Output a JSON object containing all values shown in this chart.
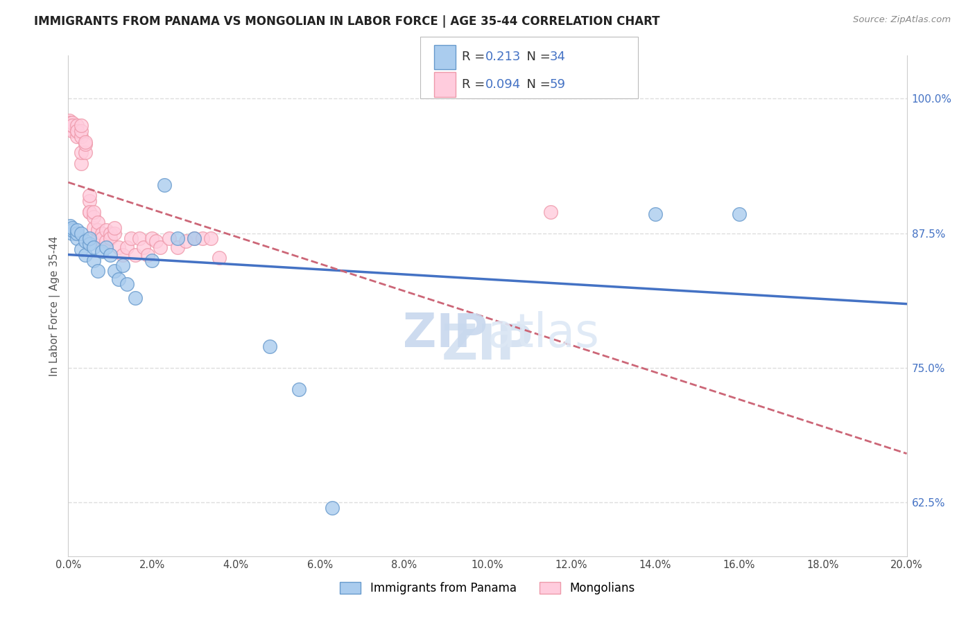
{
  "title": "IMMIGRANTS FROM PANAMA VS MONGOLIAN IN LABOR FORCE | AGE 35-44 CORRELATION CHART",
  "source": "Source: ZipAtlas.com",
  "ylabel": "In Labor Force | Age 35-44",
  "yticks": [
    0.625,
    0.75,
    0.875,
    1.0
  ],
  "ytick_labels": [
    "62.5%",
    "75.0%",
    "87.5%",
    "100.0%"
  ],
  "xlim": [
    0.0,
    0.2
  ],
  "ylim": [
    0.575,
    1.04
  ],
  "panama_color_edge": "#6699cc",
  "panama_color_fill": "#aaccee",
  "mongolian_color_edge": "#ee99aa",
  "mongolian_color_fill": "#ffccdd",
  "regression_blue": "#4472c4",
  "regression_pink": "#cc6677",
  "background_color": "#ffffff",
  "grid_color": "#dddddd",
  "panama_x": [
    0.0005,
    0.0005,
    0.001,
    0.001,
    0.001,
    0.002,
    0.002,
    0.002,
    0.003,
    0.003,
    0.004,
    0.004,
    0.005,
    0.005,
    0.006,
    0.006,
    0.007,
    0.008,
    0.009,
    0.01,
    0.011,
    0.012,
    0.013,
    0.014,
    0.016,
    0.02,
    0.023,
    0.026,
    0.03,
    0.048,
    0.055,
    0.063,
    0.14,
    0.16
  ],
  "panama_y": [
    0.878,
    0.882,
    0.875,
    0.878,
    0.88,
    0.87,
    0.875,
    0.878,
    0.86,
    0.875,
    0.855,
    0.868,
    0.865,
    0.87,
    0.85,
    0.862,
    0.84,
    0.858,
    0.862,
    0.855,
    0.84,
    0.832,
    0.845,
    0.828,
    0.815,
    0.85,
    0.92,
    0.87,
    0.87,
    0.77,
    0.73,
    0.62,
    0.893,
    0.893
  ],
  "mongolian_x": [
    0.0003,
    0.0003,
    0.0005,
    0.0005,
    0.0005,
    0.001,
    0.001,
    0.001,
    0.001,
    0.002,
    0.002,
    0.002,
    0.002,
    0.003,
    0.003,
    0.003,
    0.003,
    0.003,
    0.004,
    0.004,
    0.004,
    0.005,
    0.005,
    0.005,
    0.005,
    0.006,
    0.006,
    0.006,
    0.007,
    0.007,
    0.007,
    0.008,
    0.008,
    0.008,
    0.009,
    0.009,
    0.01,
    0.01,
    0.011,
    0.011,
    0.012,
    0.013,
    0.014,
    0.015,
    0.016,
    0.017,
    0.018,
    0.019,
    0.02,
    0.021,
    0.022,
    0.024,
    0.026,
    0.028,
    0.03,
    0.032,
    0.034,
    0.036,
    0.115
  ],
  "mongolian_y": [
    0.975,
    0.98,
    0.972,
    0.978,
    0.975,
    0.97,
    0.975,
    0.978,
    0.975,
    0.965,
    0.97,
    0.975,
    0.97,
    0.94,
    0.95,
    0.965,
    0.97,
    0.975,
    0.95,
    0.958,
    0.96,
    0.895,
    0.905,
    0.91,
    0.895,
    0.88,
    0.89,
    0.895,
    0.87,
    0.878,
    0.885,
    0.87,
    0.875,
    0.87,
    0.868,
    0.878,
    0.875,
    0.87,
    0.875,
    0.88,
    0.862,
    0.855,
    0.862,
    0.87,
    0.855,
    0.87,
    0.862,
    0.855,
    0.87,
    0.868,
    0.862,
    0.87,
    0.862,
    0.868,
    0.87,
    0.87,
    0.87,
    0.852,
    0.895
  ],
  "legend_r_panama": "0.213",
  "legend_n_panama": "34",
  "legend_r_mongolian": "0.094",
  "legend_n_mongolian": "59"
}
